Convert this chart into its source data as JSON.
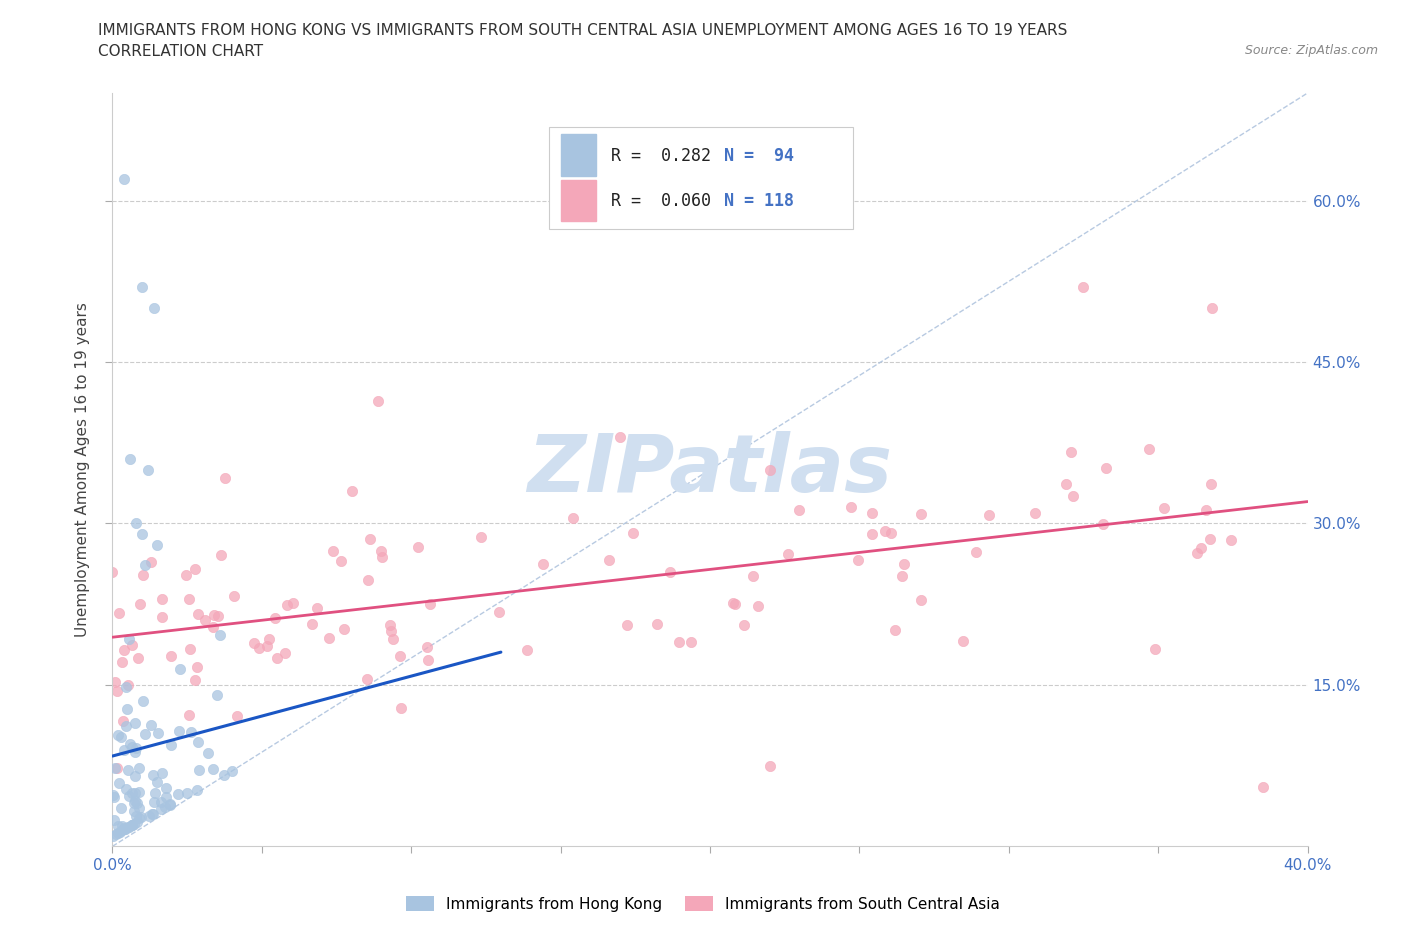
{
  "title_line1": "IMMIGRANTS FROM HONG KONG VS IMMIGRANTS FROM SOUTH CENTRAL ASIA UNEMPLOYMENT AMONG AGES 16 TO 19 YEARS",
  "title_line2": "CORRELATION CHART",
  "source_text": "Source: ZipAtlas.com",
  "ylabel": "Unemployment Among Ages 16 to 19 years",
  "xlim": [
    0.0,
    0.4
  ],
  "ylim": [
    0.0,
    0.7
  ],
  "xtick_positions": [
    0.0,
    0.05,
    0.1,
    0.15,
    0.2,
    0.25,
    0.3,
    0.35,
    0.4
  ],
  "xtick_labels": [
    "0.0%",
    "",
    "",
    "",
    "",
    "",
    "",
    "",
    "40.0%"
  ],
  "ytick_values": [
    0.15,
    0.3,
    0.45,
    0.6
  ],
  "ytick_labels": [
    "15.0%",
    "30.0%",
    "45.0%",
    "60.0%"
  ],
  "hk_color": "#a8c4e0",
  "sca_color": "#f4a7b9",
  "hk_line_color": "#1a56c4",
  "sca_line_color": "#e05080",
  "diagonal_color": "#b0c4de",
  "watermark_color": "#d0dff0",
  "legend_R_hk": "R =  0.282",
  "legend_N_hk": "N =  94",
  "legend_R_sca": "R =  0.060",
  "legend_N_sca": "N = 118",
  "hk_R": 0.282,
  "sca_R": 0.06
}
